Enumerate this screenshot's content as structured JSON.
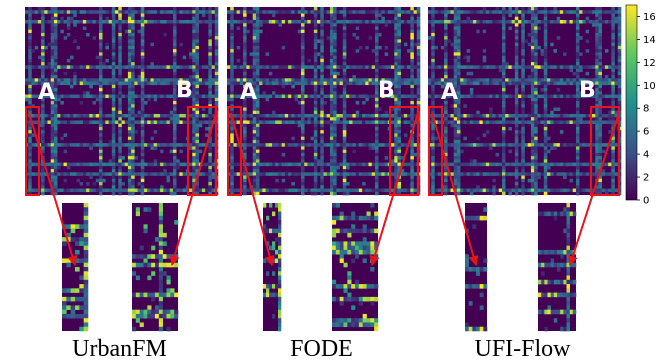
{
  "colormap": {
    "name": "viridis",
    "stops": [
      "#440154",
      "#3b528b",
      "#21918c",
      "#5ec962",
      "#fde725"
    ]
  },
  "highlight_color": "#e8141b",
  "chart_data": {
    "type": "heatmap",
    "title": "",
    "colorbar": {
      "ticks": [
        0,
        2,
        4,
        6,
        8,
        10,
        12,
        14,
        16
      ],
      "range": [
        0,
        17
      ]
    },
    "panels": [
      {
        "caption": "UrbanFM",
        "region_a": "A",
        "region_b": "B"
      },
      {
        "caption": "FODE",
        "region_a": "A",
        "region_b": "B"
      },
      {
        "caption": "UFI-Flow",
        "region_a": "A",
        "region_b": "B"
      }
    ],
    "grid": "none",
    "legend": "right"
  }
}
